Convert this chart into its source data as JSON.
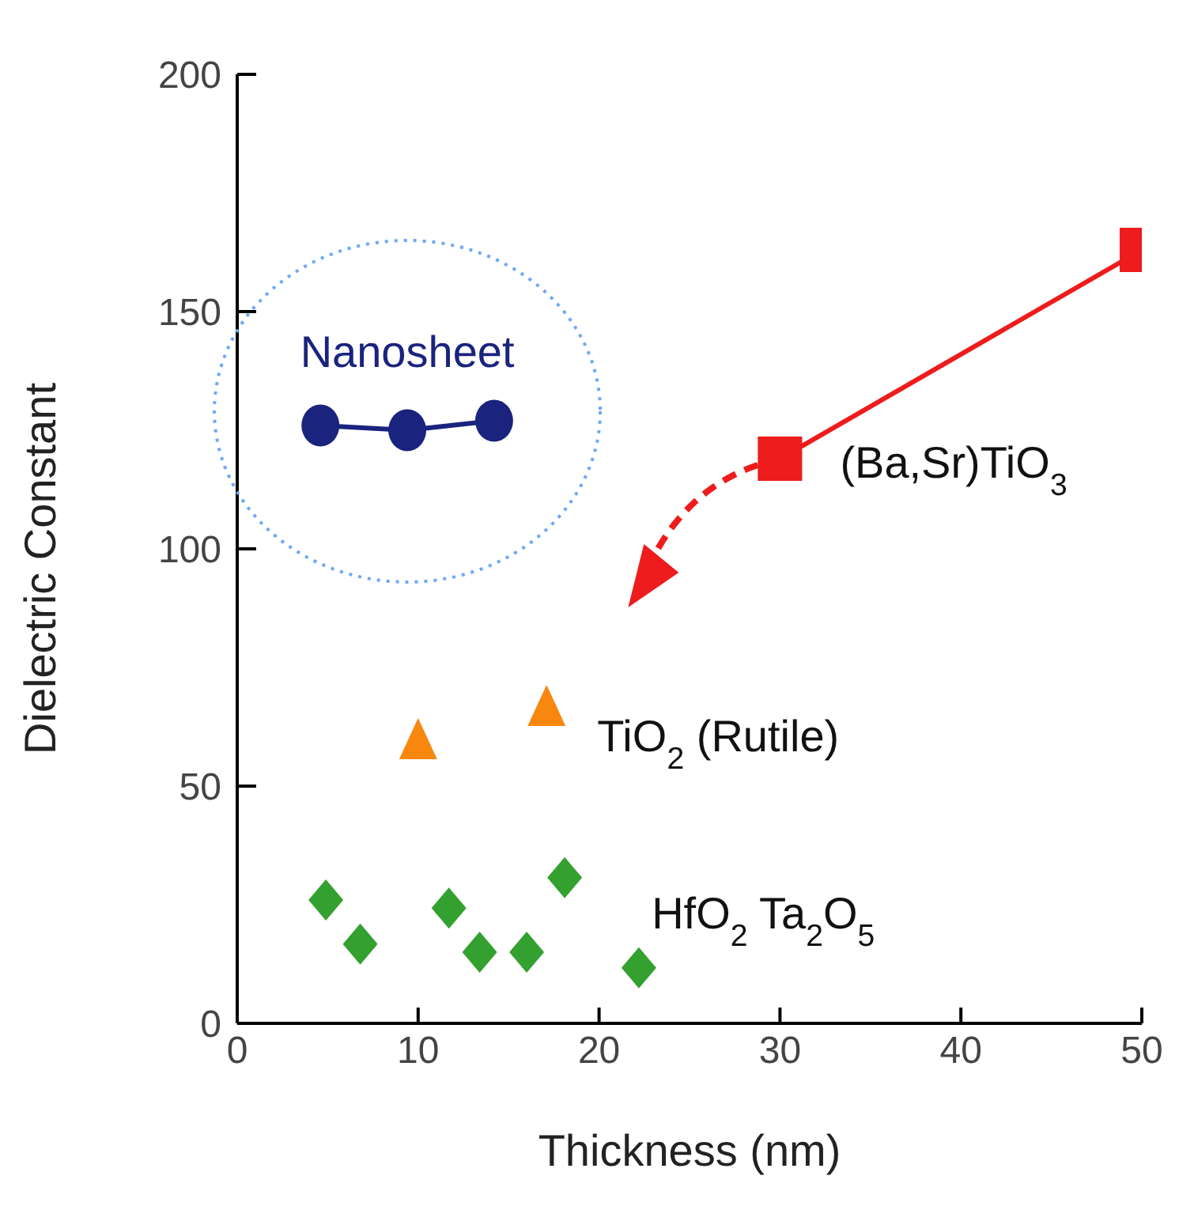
{
  "chart_data": {
    "type": "scatter",
    "xlabel": "Thickness (nm)",
    "ylabel": "Dielectric Constant",
    "xlim": [
      0,
      50
    ],
    "ylim": [
      0,
      200
    ],
    "xticks": [
      0,
      10,
      20,
      30,
      40,
      50
    ],
    "yticks": [
      0,
      50,
      100,
      150,
      200
    ],
    "series": [
      {
        "name": "Nanosheet",
        "type": "line",
        "marker": "circle",
        "color": "#1a237e",
        "x": [
          4.6,
          9.4,
          14.2
        ],
        "values": [
          126,
          125,
          127
        ]
      },
      {
        "name": "(Ba,Sr)TiO$_{3}$",
        "type": "line",
        "marker": "square",
        "color": "#ee1c1c",
        "x": [
          30,
          50
        ],
        "values": [
          119,
          163
        ]
      },
      {
        "name": "TiO$_{2}$ (Rutile)",
        "marker": "triangle",
        "color": "#f7870f",
        "x": [
          10,
          17.1
        ],
        "values": [
          59,
          66
        ]
      },
      {
        "name": "HfO$_{2}$  Ta$_{2}$O$_{5}$",
        "marker": "diamond",
        "color": "#34a02f",
        "x": [
          4.9,
          6.8,
          11.7,
          13.4,
          16,
          18.1,
          22.2
        ],
        "values": [
          26,
          16.7,
          24.3,
          15,
          15,
          30.7,
          11.7
        ]
      }
    ]
  }
}
